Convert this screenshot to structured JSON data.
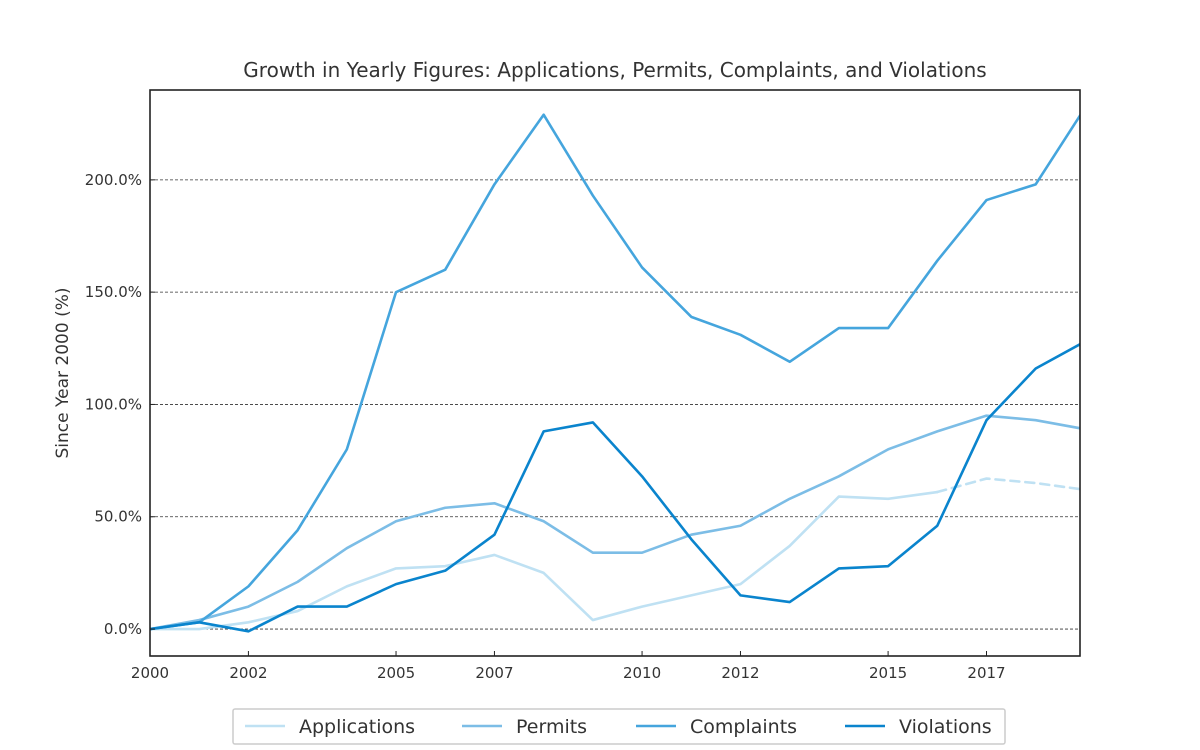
{
  "chart_data": {
    "type": "line",
    "title": "Growth in Yearly Figures: Applications, Permits, Complaints, and Violations",
    "xlabel": "",
    "ylabel": "Since Year 2000 (%)",
    "xlim": [
      2000,
      2018.9
    ],
    "ylim": [
      -12,
      240
    ],
    "xticks": [
      2000,
      2002,
      2005,
      2007,
      2010,
      2012,
      2015,
      2017
    ],
    "yticks": [
      0,
      50,
      100,
      150,
      200
    ],
    "ytick_labels": [
      "0.0%",
      "50.0%",
      "100.0%",
      "150.0%",
      "200.0%"
    ],
    "grid": "horizontal dashed",
    "legend_position": "bottom-center",
    "x": [
      2000,
      2001,
      2002,
      2003,
      2004,
      2005,
      2006,
      2007,
      2008,
      2009,
      2010,
      2011,
      2012,
      2013,
      2014,
      2015,
      2016,
      2017,
      2018,
      2019
    ],
    "series": [
      {
        "name": "Applications",
        "color": "#bfe1f3",
        "values": [
          0,
          0,
          3,
          8,
          19,
          27,
          28,
          33,
          25,
          4,
          10,
          15,
          20,
          37,
          59,
          58,
          61,
          67,
          65,
          62
        ],
        "dashed_from_index": 16
      },
      {
        "name": "Permits",
        "color": "#7cbde6",
        "values": [
          0,
          4,
          10,
          21,
          36,
          48,
          54,
          56,
          48,
          34,
          34,
          42,
          46,
          58,
          68,
          80,
          88,
          95,
          93,
          89
        ]
      },
      {
        "name": "Complaints",
        "color": "#45a5dd",
        "values": [
          0,
          3,
          19,
          44,
          80,
          150,
          160,
          198,
          229,
          193,
          161,
          139,
          131,
          119,
          134,
          134,
          164,
          191,
          198,
          232
        ]
      },
      {
        "name": "Violations",
        "color": "#0a84cd",
        "values": [
          0,
          3,
          -1,
          10,
          10,
          20,
          26,
          42,
          88,
          92,
          68,
          40,
          15,
          12,
          27,
          28,
          46,
          93,
          116,
          128
        ]
      }
    ]
  }
}
